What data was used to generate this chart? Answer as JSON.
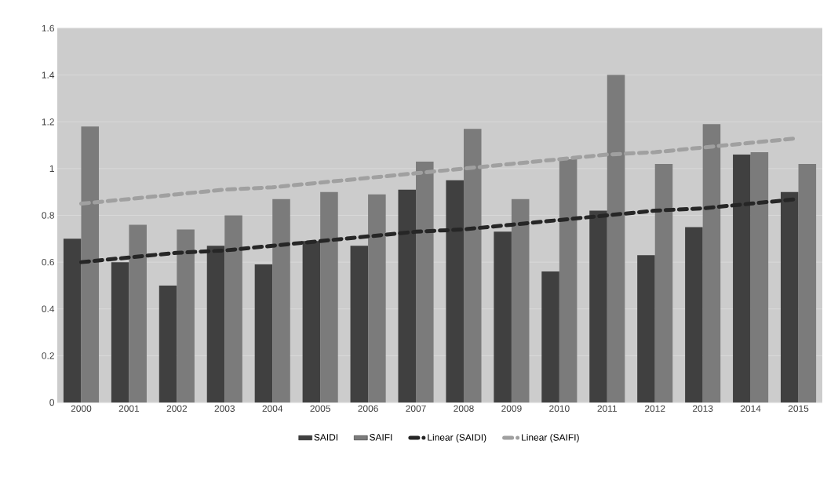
{
  "chart_data": {
    "type": "bar",
    "categories": [
      "2000",
      "2001",
      "2002",
      "2003",
      "2004",
      "2005",
      "2006",
      "2007",
      "2008",
      "2009",
      "2010",
      "2011",
      "2012",
      "2013",
      "2014",
      "2015"
    ],
    "series": [
      {
        "name": "SAIDI",
        "color": "#404040",
        "values": [
          0.7,
          0.6,
          0.5,
          0.67,
          0.59,
          0.69,
          0.67,
          0.91,
          0.95,
          0.73,
          0.56,
          0.82,
          0.63,
          0.75,
          1.06,
          0.9
        ]
      },
      {
        "name": "SAIFI",
        "color": "#7b7b7b",
        "values": [
          1.18,
          0.76,
          0.74,
          0.8,
          0.87,
          0.9,
          0.89,
          1.03,
          1.17,
          0.87,
          1.04,
          1.4,
          1.02,
          1.19,
          1.07,
          1.02
        ]
      },
      {
        "name": "Linear (SAIDI)",
        "type": "line",
        "line_style": "dashed",
        "color": "#262626",
        "values": [
          0.6,
          0.62,
          0.64,
          0.65,
          0.67,
          0.69,
          0.71,
          0.73,
          0.74,
          0.76,
          0.78,
          0.8,
          0.82,
          0.83,
          0.85,
          0.87
        ]
      },
      {
        "name": "Linear (SAIFI)",
        "type": "line",
        "line_style": "dashed",
        "color": "#a0a0a0",
        "values": [
          0.85,
          0.87,
          0.89,
          0.91,
          0.92,
          0.94,
          0.96,
          0.98,
          1.0,
          1.02,
          1.04,
          1.06,
          1.07,
          1.09,
          1.11,
          1.13
        ]
      }
    ],
    "ylim": [
      0,
      1.6
    ],
    "yticks": [
      0,
      0.2,
      0.4,
      0.6,
      0.8,
      1,
      1.2,
      1.4,
      1.6
    ],
    "grid": "y",
    "legend": "bottom"
  }
}
